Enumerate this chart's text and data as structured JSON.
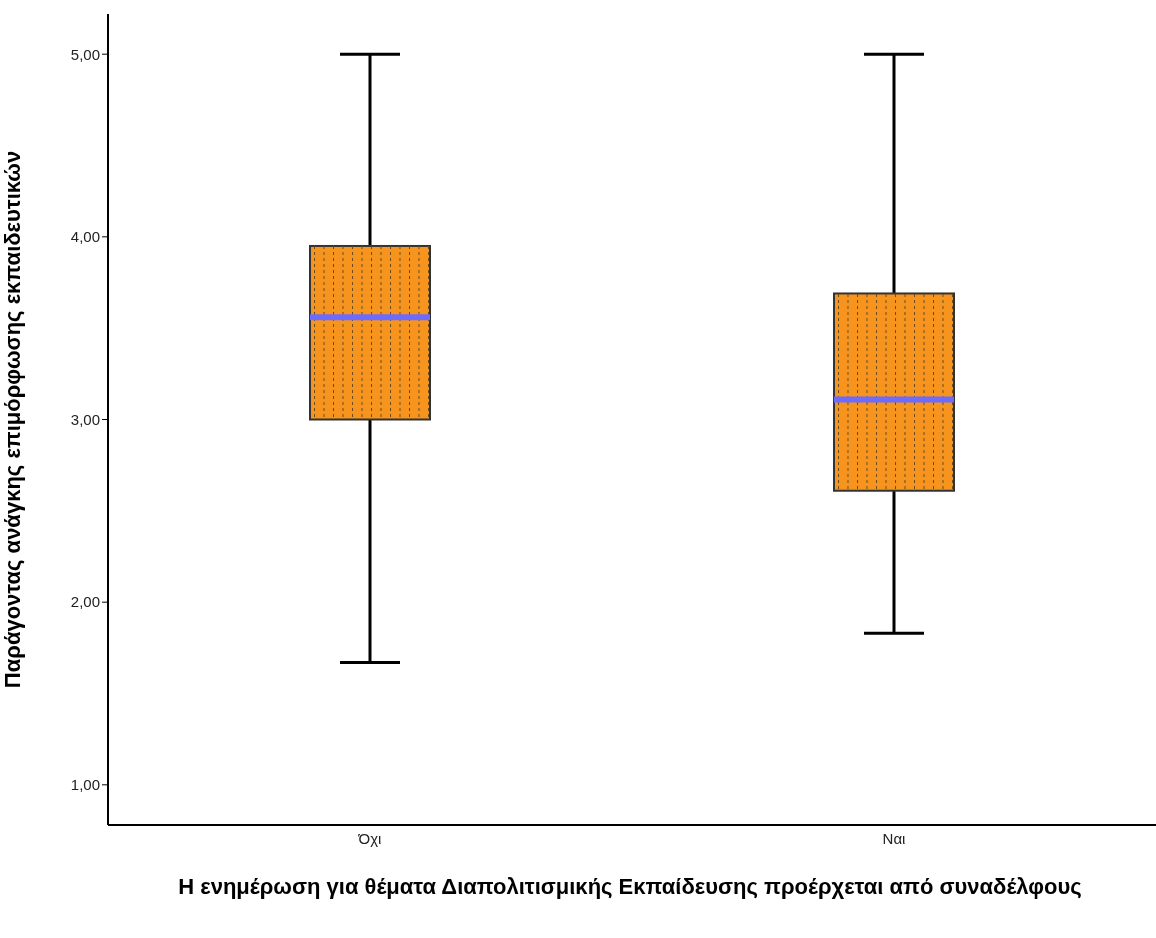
{
  "chart_data": {
    "type": "box",
    "xlabel": "Η ενημέρωση για θέματα Διαπολιτισμικής Εκπαίδευσης προέρχεται από συναδέλφους",
    "ylabel": "Παράγοντας ανάγκης επιμόρφωσης εκπαιδευτικών",
    "categories": [
      "Όχι",
      "Ναι"
    ],
    "color": "#f7941e",
    "boxes": [
      {
        "low": 1.67,
        "q1": 3.0,
        "median": 3.56,
        "q3": 3.95,
        "high": 5.0
      },
      {
        "low": 1.83,
        "q1": 2.61,
        "median": 3.11,
        "q3": 3.69,
        "high": 5.0
      }
    ],
    "ylim": [
      0.78,
      5.22
    ],
    "yticks": [
      {
        "value": 1,
        "label": "1,00"
      },
      {
        "value": 2,
        "label": "2,00"
      },
      {
        "value": 3,
        "label": "3,00"
      },
      {
        "value": 4,
        "label": "4,00"
      },
      {
        "value": 5,
        "label": "5,00"
      }
    ]
  }
}
